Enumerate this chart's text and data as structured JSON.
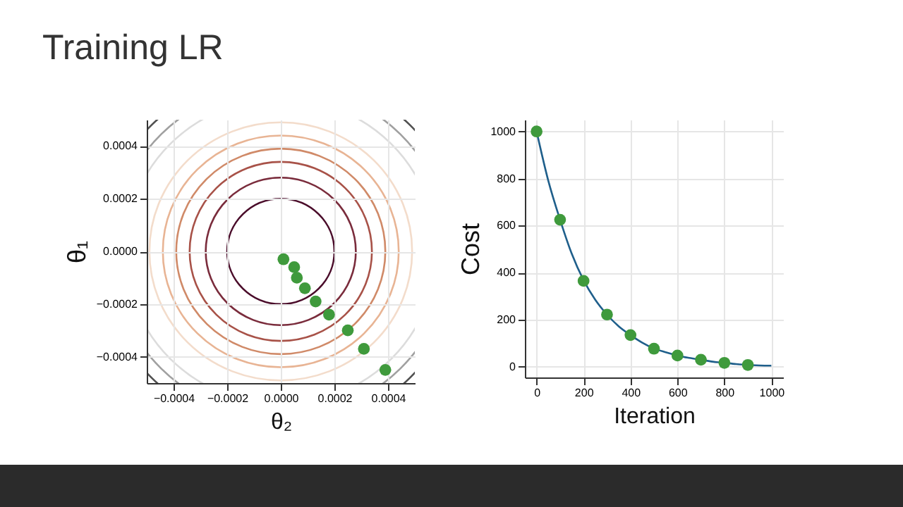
{
  "chart_data": [
    {
      "type": "scatter",
      "title": "Training LR",
      "xlabel": "θ₂",
      "ylabel": "θ₁",
      "xlim": [
        -0.0005,
        0.0005
      ],
      "ylim": [
        -0.0005,
        0.0005
      ],
      "xticks": [
        {
          "value": -0.0004,
          "label": "−0.0004"
        },
        {
          "value": -0.0002,
          "label": "−0.0002"
        },
        {
          "value": 0,
          "label": "0.0000"
        },
        {
          "value": 0.0002,
          "label": "0.0002"
        },
        {
          "value": 0.0004,
          "label": "0.0004"
        }
      ],
      "yticks": [
        {
          "value": -0.0004,
          "label": "−0.0004"
        },
        {
          "value": -0.0002,
          "label": "−0.0002"
        },
        {
          "value": 0,
          "label": "0.0000"
        },
        {
          "value": 0.0002,
          "label": "0.0002"
        },
        {
          "value": 0.0004,
          "label": "0.0004"
        }
      ],
      "grid": true,
      "series": [
        {
          "color": "#3f9a3c",
          "marker": "circle",
          "x": [
            1e-05,
            5e-05,
            6e-05,
            9e-05,
            0.00013,
            0.00018,
            0.00025,
            0.00031,
            0.00039
          ],
          "values": [
            -3e-05,
            -6e-05,
            -0.0001,
            -0.00014,
            -0.00019,
            -0.00024,
            -0.0003,
            -0.00037,
            -0.00045
          ]
        }
      ]
    },
    {
      "type": "line",
      "xlabel": "Iteration",
      "ylabel": "Cost",
      "xlim": [
        -50,
        1050
      ],
      "ylim": [
        -45,
        1050
      ],
      "xticks": [
        0,
        200,
        400,
        600,
        800,
        1000
      ],
      "yticks": [
        0,
        200,
        400,
        600,
        800,
        1000
      ],
      "grid": true,
      "series": [
        {
          "color": "#1f5f8b",
          "marker": "none",
          "x": [
            0,
            50,
            100,
            150,
            200,
            250,
            300,
            350,
            400,
            450,
            500,
            550,
            600,
            650,
            700,
            750,
            800,
            850,
            900,
            950,
            1000
          ],
          "values": [
            1000,
            790,
            625,
            480,
            368,
            285,
            222,
            172,
            135,
            103,
            78,
            62,
            48,
            38,
            30,
            22,
            17,
            12,
            8,
            6,
            5
          ]
        },
        {
          "type": "scatter",
          "color": "#3f9a3c",
          "marker": "circle",
          "x": [
            0,
            100,
            200,
            300,
            400,
            500,
            600,
            700,
            800,
            900
          ],
          "values": [
            1000,
            625,
            365,
            222,
            135,
            77,
            48,
            30,
            17,
            8
          ]
        }
      ]
    }
  ]
}
